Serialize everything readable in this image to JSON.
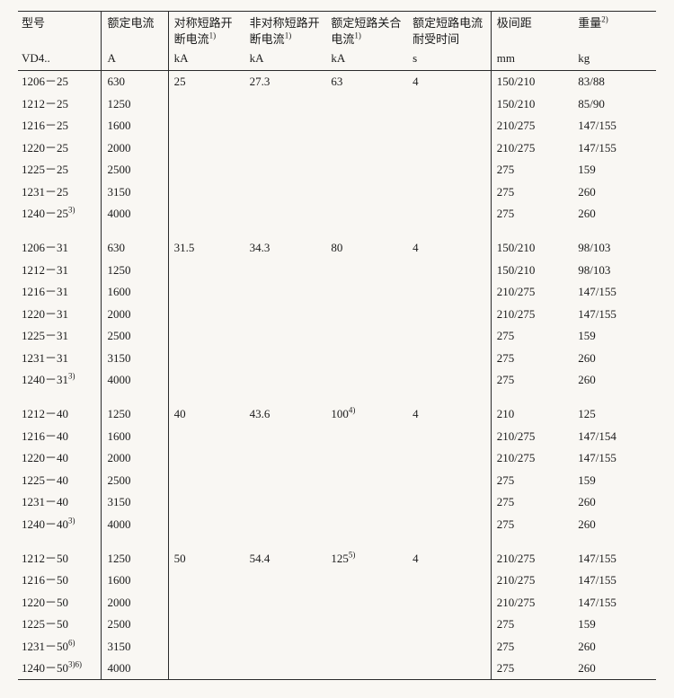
{
  "table": {
    "font_size_body": 13,
    "font_size_sup": 9,
    "background_color": "#f9f7f3",
    "border_color": "#2a2a2a",
    "text_color": "#1a1a1a",
    "columns": [
      {
        "key": "model",
        "label": "型号",
        "label_sup": "",
        "unit": "VD4..",
        "unit_sup": ""
      },
      {
        "key": "current",
        "label": "额定电流",
        "label_sup": "",
        "unit": "A",
        "unit_sup": ""
      },
      {
        "key": "sym",
        "label": "对称短路开断电流",
        "label_sup": "1)",
        "unit": "kA",
        "unit_sup": ""
      },
      {
        "key": "asym",
        "label": "非对称短路开断电流",
        "label_sup": "1)",
        "unit": "kA",
        "unit_sup": ""
      },
      {
        "key": "make",
        "label": "额定短路关合电流",
        "label_sup": "1)",
        "unit": "kA",
        "unit_sup": ""
      },
      {
        "key": "dur",
        "label": "额定短路电流耐受时间",
        "label_sup": "",
        "unit": "s",
        "unit_sup": ""
      },
      {
        "key": "pole",
        "label": "极间距",
        "label_sup": "",
        "unit": "mm",
        "unit_sup": ""
      },
      {
        "key": "weight",
        "label": "重量",
        "label_sup": "2)",
        "unit": "kg",
        "unit_sup": ""
      }
    ],
    "groups": [
      {
        "rows": [
          {
            "model": "1206－25",
            "model_sup": "",
            "current": "630",
            "sym": "25",
            "asym": "27.3",
            "make": "63",
            "make_sup": "",
            "dur": "4",
            "pole": "150/210",
            "weight": "83/88"
          },
          {
            "model": "1212－25",
            "model_sup": "",
            "current": "1250",
            "sym": "",
            "asym": "",
            "make": "",
            "make_sup": "",
            "dur": "",
            "pole": "150/210",
            "weight": "85/90"
          },
          {
            "model": "1216－25",
            "model_sup": "",
            "current": "1600",
            "sym": "",
            "asym": "",
            "make": "",
            "make_sup": "",
            "dur": "",
            "pole": "210/275",
            "weight": "147/155"
          },
          {
            "model": "1220－25",
            "model_sup": "",
            "current": "2000",
            "sym": "",
            "asym": "",
            "make": "",
            "make_sup": "",
            "dur": "",
            "pole": "210/275",
            "weight": "147/155"
          },
          {
            "model": "1225－25",
            "model_sup": "",
            "current": "2500",
            "sym": "",
            "asym": "",
            "make": "",
            "make_sup": "",
            "dur": "",
            "pole": "275",
            "weight": "159"
          },
          {
            "model": "1231－25",
            "model_sup": "",
            "current": "3150",
            "sym": "",
            "asym": "",
            "make": "",
            "make_sup": "",
            "dur": "",
            "pole": "275",
            "weight": "260"
          },
          {
            "model": "1240－25",
            "model_sup": "3)",
            "current": "4000",
            "sym": "",
            "asym": "",
            "make": "",
            "make_sup": "",
            "dur": "",
            "pole": "275",
            "weight": "260"
          }
        ]
      },
      {
        "rows": [
          {
            "model": "1206－31",
            "model_sup": "",
            "current": "630",
            "sym": "31.5",
            "asym": "34.3",
            "make": "80",
            "make_sup": "",
            "dur": "4",
            "pole": "150/210",
            "weight": "98/103"
          },
          {
            "model": "1212－31",
            "model_sup": "",
            "current": "1250",
            "sym": "",
            "asym": "",
            "make": "",
            "make_sup": "",
            "dur": "",
            "pole": "150/210",
            "weight": "98/103"
          },
          {
            "model": "1216－31",
            "model_sup": "",
            "current": "1600",
            "sym": "",
            "asym": "",
            "make": "",
            "make_sup": "",
            "dur": "",
            "pole": "210/275",
            "weight": "147/155"
          },
          {
            "model": "1220－31",
            "model_sup": "",
            "current": "2000",
            "sym": "",
            "asym": "",
            "make": "",
            "make_sup": "",
            "dur": "",
            "pole": "210/275",
            "weight": "147/155"
          },
          {
            "model": "1225－31",
            "model_sup": "",
            "current": "2500",
            "sym": "",
            "asym": "",
            "make": "",
            "make_sup": "",
            "dur": "",
            "pole": "275",
            "weight": "159"
          },
          {
            "model": "1231－31",
            "model_sup": "",
            "current": "3150",
            "sym": "",
            "asym": "",
            "make": "",
            "make_sup": "",
            "dur": "",
            "pole": "275",
            "weight": "260"
          },
          {
            "model": "1240－31",
            "model_sup": "3)",
            "current": "4000",
            "sym": "",
            "asym": "",
            "make": "",
            "make_sup": "",
            "dur": "",
            "pole": "275",
            "weight": "260"
          }
        ]
      },
      {
        "rows": [
          {
            "model": "1212－40",
            "model_sup": "",
            "current": "1250",
            "sym": "40",
            "asym": "43.6",
            "make": "100",
            "make_sup": "4)",
            "dur": "4",
            "pole": "210",
            "weight": "125"
          },
          {
            "model": "1216－40",
            "model_sup": "",
            "current": "1600",
            "sym": "",
            "asym": "",
            "make": "",
            "make_sup": "",
            "dur": "",
            "pole": "210/275",
            "weight": "147/154"
          },
          {
            "model": "1220－40",
            "model_sup": "",
            "current": "2000",
            "sym": "",
            "asym": "",
            "make": "",
            "make_sup": "",
            "dur": "",
            "pole": "210/275",
            "weight": "147/155"
          },
          {
            "model": "1225－40",
            "model_sup": "",
            "current": "2500",
            "sym": "",
            "asym": "",
            "make": "",
            "make_sup": "",
            "dur": "",
            "pole": "275",
            "weight": "159"
          },
          {
            "model": "1231－40",
            "model_sup": "",
            "current": "3150",
            "sym": "",
            "asym": "",
            "make": "",
            "make_sup": "",
            "dur": "",
            "pole": "275",
            "weight": "260"
          },
          {
            "model": "1240－40",
            "model_sup": "3)",
            "current": "4000",
            "sym": "",
            "asym": "",
            "make": "",
            "make_sup": "",
            "dur": "",
            "pole": "275",
            "weight": "260"
          }
        ]
      },
      {
        "rows": [
          {
            "model": "1212－50",
            "model_sup": "",
            "current": "1250",
            "sym": "50",
            "asym": "54.4",
            "make": "125",
            "make_sup": "5)",
            "dur": "4",
            "pole": "210/275",
            "weight": "147/155"
          },
          {
            "model": "1216－50",
            "model_sup": "",
            "current": "1600",
            "sym": "",
            "asym": "",
            "make": "",
            "make_sup": "",
            "dur": "",
            "pole": "210/275",
            "weight": "147/155"
          },
          {
            "model": "1220－50",
            "model_sup": "",
            "current": "2000",
            "sym": "",
            "asym": "",
            "make": "",
            "make_sup": "",
            "dur": "",
            "pole": "210/275",
            "weight": "147/155"
          },
          {
            "model": "1225－50",
            "model_sup": "",
            "current": "2500",
            "sym": "",
            "asym": "",
            "make": "",
            "make_sup": "",
            "dur": "",
            "pole": "275",
            "weight": "159"
          },
          {
            "model": "1231－50",
            "model_sup": "6)",
            "current": "3150",
            "sym": "",
            "asym": "",
            "make": "",
            "make_sup": "",
            "dur": "",
            "pole": "275",
            "weight": "260"
          },
          {
            "model": "1240－50",
            "model_sup": "3)6)",
            "current": "4000",
            "sym": "",
            "asym": "",
            "make": "",
            "make_sup": "",
            "dur": "",
            "pole": "275",
            "weight": "260"
          }
        ]
      }
    ]
  }
}
